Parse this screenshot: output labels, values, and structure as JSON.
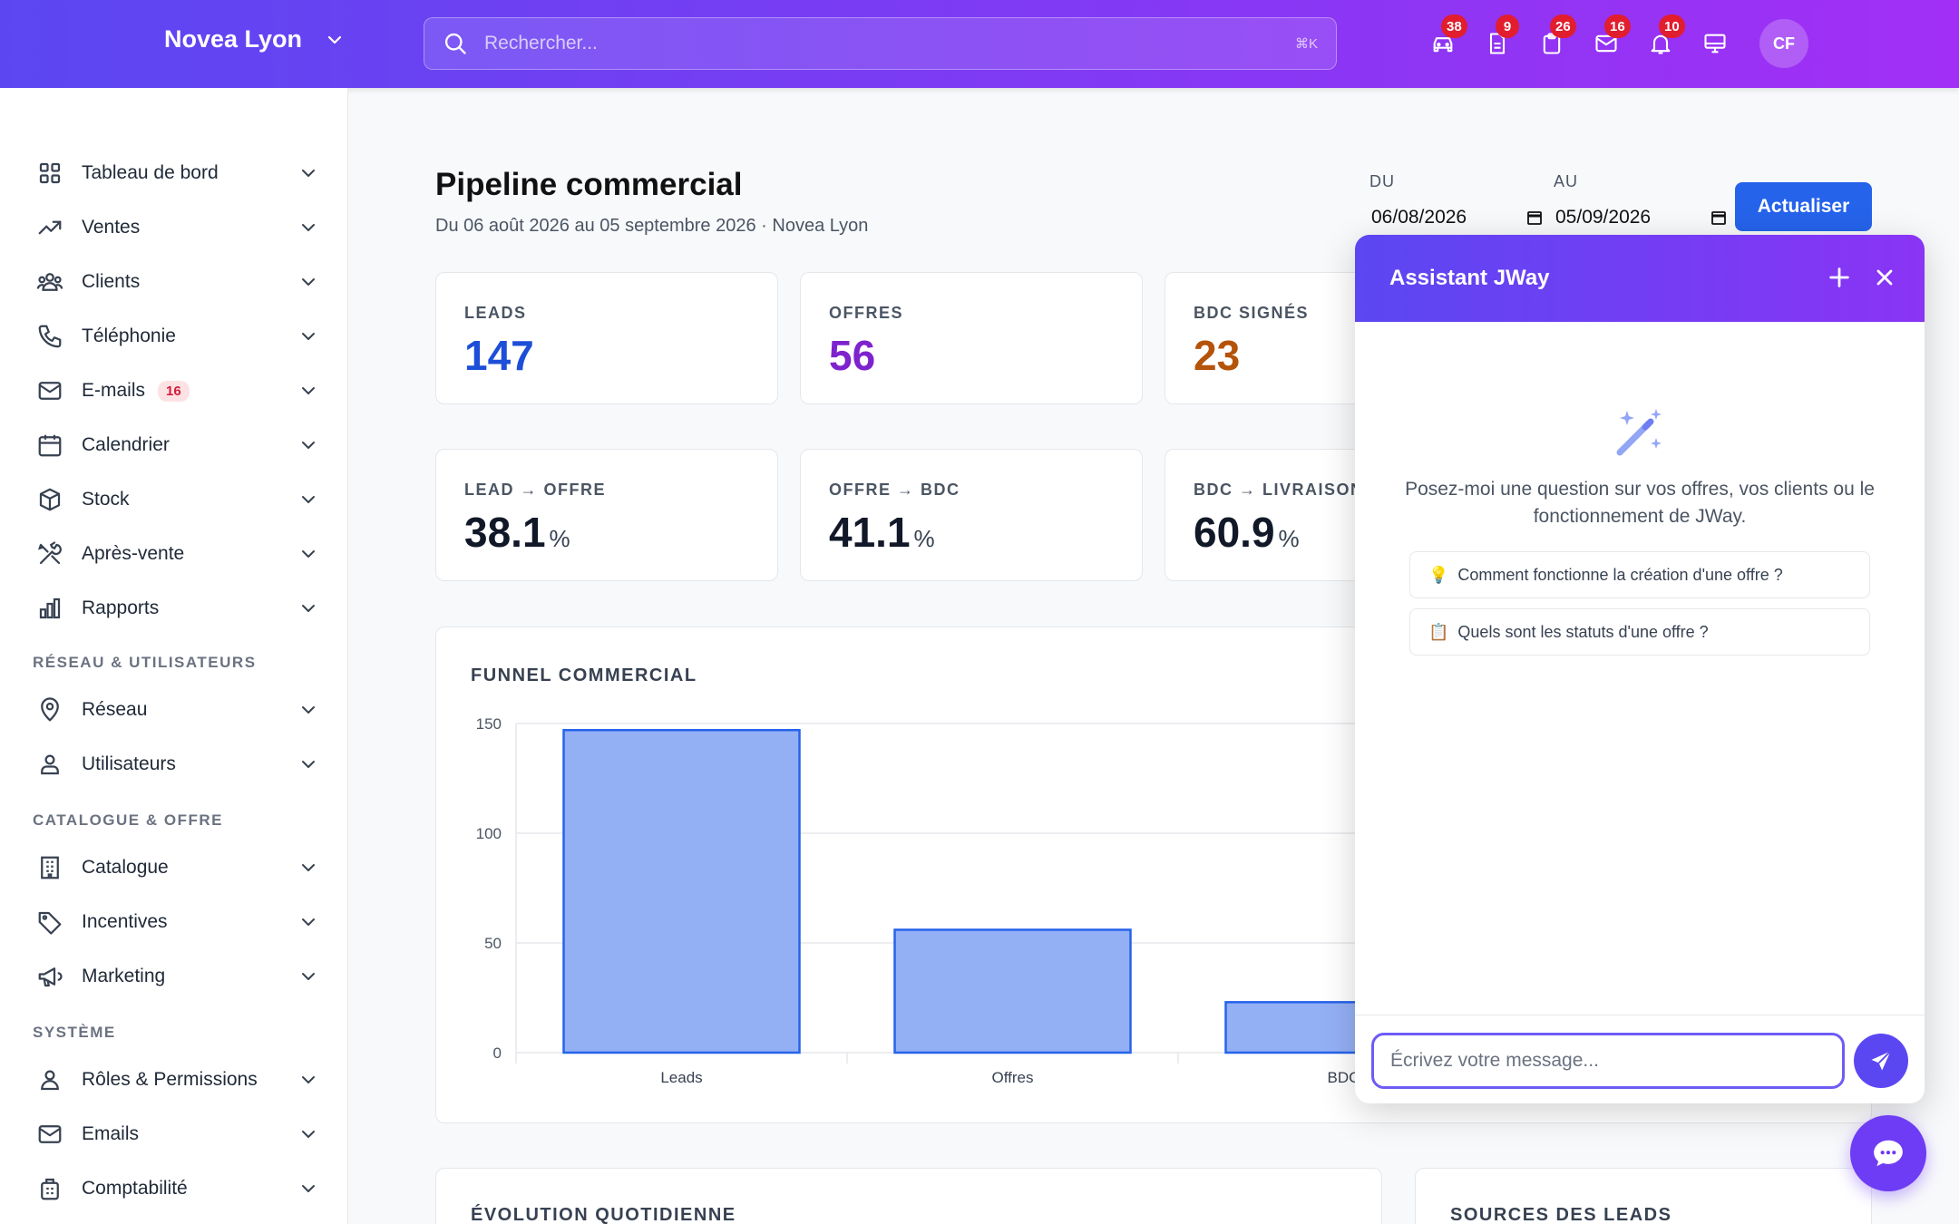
{
  "header": {
    "brand": "Novea Lyon",
    "search_placeholder": "Rechercher...",
    "search_shortcut": "⌘K",
    "icons": [
      {
        "name": "car-icon",
        "badge": "38"
      },
      {
        "name": "document-icon",
        "badge": "9"
      },
      {
        "name": "clipboard-icon",
        "badge": "26"
      },
      {
        "name": "mail-icon",
        "badge": "16"
      },
      {
        "name": "bell-icon",
        "badge": "10"
      },
      {
        "name": "monitor-icon",
        "badge": ""
      }
    ],
    "avatar_initials": "CF"
  },
  "sidebar": {
    "items": [
      {
        "label": "Tableau de bord",
        "icon": "grid-icon"
      },
      {
        "label": "Ventes",
        "icon": "trending-up-icon"
      },
      {
        "label": "Clients",
        "icon": "users-icon"
      },
      {
        "label": "Téléphonie",
        "icon": "phone-icon"
      },
      {
        "label": "E-mails",
        "icon": "mail-icon",
        "badge": "16"
      },
      {
        "label": "Calendrier",
        "icon": "calendar-icon"
      },
      {
        "label": "Stock",
        "icon": "box-icon"
      },
      {
        "label": "Après-vente",
        "icon": "tools-icon"
      },
      {
        "label": "Rapports",
        "icon": "bar-chart-icon"
      }
    ],
    "section_network": "RÉSEAU & UTILISATEURS",
    "network_items": [
      {
        "label": "Réseau",
        "icon": "map-pin-icon"
      },
      {
        "label": "Utilisateurs",
        "icon": "user-network-icon"
      }
    ],
    "section_catalog": "CATALOGUE & OFFRE",
    "catalog_items": [
      {
        "label": "Catalogue",
        "icon": "building-icon"
      },
      {
        "label": "Incentives",
        "icon": "tag-icon"
      },
      {
        "label": "Marketing",
        "icon": "megaphone-icon"
      }
    ],
    "section_system": "SYSTÈME",
    "system_items": [
      {
        "label": "Rôles & Permissions",
        "icon": "user-icon"
      },
      {
        "label": "Emails",
        "icon": "mail-icon"
      },
      {
        "label": "Comptabilité",
        "icon": "calculator-icon"
      }
    ]
  },
  "main": {
    "title": "Pipeline commercial",
    "subtitle": "Du 06 août 2026 au 05 septembre 2026 · Novea Lyon",
    "date_from_label": "DU",
    "date_from": "06/08/2026",
    "date_to_label": "AU",
    "date_to": "05/09/2026",
    "update_button": "Actualiser",
    "kpis": [
      {
        "label": "LEADS",
        "value": "147",
        "color": "#1d4ed8"
      },
      {
        "label": "OFFRES",
        "value": "56",
        "color": "#7e22ce"
      },
      {
        "label": "BDC SIGNÉS",
        "value": "23",
        "color": "#b45309"
      }
    ],
    "rates": [
      {
        "label": "LEAD → OFFRE",
        "value": "38.1",
        "unit": "%"
      },
      {
        "label": "OFFRE → BDC",
        "value": "41.1",
        "unit": "%"
      },
      {
        "label": "BDC → LIVRAISON",
        "value": "60.9",
        "unit": "%"
      }
    ],
    "funnel_title": "FUNNEL COMMERCIAL",
    "evolution_title": "ÉVOLUTION QUOTIDIENNE",
    "sources_title": "SOURCES DES LEADS"
  },
  "chart_data": {
    "type": "bar",
    "categories": [
      "Leads",
      "Offres",
      "BDC"
    ],
    "values": [
      147,
      56,
      23
    ],
    "ylim": [
      0,
      150
    ],
    "yticks": [
      0,
      50,
      100,
      150
    ],
    "grid": true,
    "bar_color": "#94b0f5",
    "bar_border": "#2563eb"
  },
  "chat": {
    "title": "Assistant JWay",
    "intro": "Posez-moi une question sur vos offres, vos clients ou le fonctionnement de JWay.",
    "suggestions": [
      {
        "emoji": "💡",
        "text": "Comment fonctionne la création d'une offre ?"
      },
      {
        "emoji": "📋",
        "text": "Quels sont les statuts d'une offre ?"
      }
    ],
    "input_placeholder": "Écrivez votre message..."
  }
}
